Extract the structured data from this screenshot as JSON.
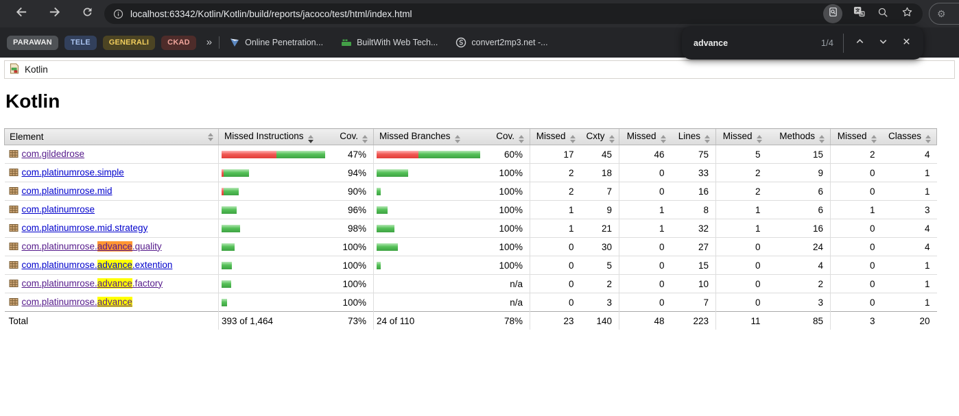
{
  "browser": {
    "toolbar": {
      "url": "localhost:63342/Kotlin/Kotlin/build/reports/jacoco/test/html/index.html",
      "nav_icons": [
        "back-icon",
        "forward-icon",
        "reload-icon",
        "info-icon"
      ],
      "page_action_icons": [
        "find-in-page-icon",
        "translate-icon",
        "zoom-icon",
        "bookmark-star-icon"
      ],
      "profile_icon": "gear-icon"
    },
    "bookmarks_bar": {
      "tab_groups": [
        {
          "label": "PARAWAN",
          "bg": "#4f5256",
          "fg": "#ececec"
        },
        {
          "label": "TELE",
          "bg": "#32405c",
          "fg": "#a9c3ef"
        },
        {
          "label": "GENERALI",
          "bg": "#4c4423",
          "fg": "#f2ce5d"
        },
        {
          "label": "CKAD",
          "bg": "#4e2c2a",
          "fg": "#efa49b"
        }
      ],
      "overflow_chevron": "»",
      "bookmarks": [
        {
          "label": "Online Penetration...",
          "icon": "pennant-shield-icon"
        },
        {
          "label": "BuiltWith Web Tech...",
          "icon": "builtwith-blocks-icon"
        },
        {
          "label": "convert2mp3.net -...",
          "icon": "s-circle-icon"
        }
      ]
    },
    "find_bar": {
      "query": "advance",
      "match_position": "1/4",
      "icons": [
        "chevron-up-icon",
        "chevron-down-icon",
        "close-icon"
      ]
    }
  },
  "report": {
    "breadcrumb": "Kotlin",
    "title": "Kotlin",
    "colors": {
      "link": "#0000cc",
      "visited_link": "#551a8b",
      "match_highlight": "#ffff00",
      "active_match_highlight": "#ff9632",
      "bar_green": "#4caf50",
      "bar_red": "#ef5350"
    },
    "table": {
      "headers": [
        {
          "label": "Element",
          "align": "left",
          "arrows_far": true
        },
        {
          "label": "Missed Instructions",
          "align": "left",
          "sep": true,
          "sorted": "desc"
        },
        {
          "label": "Cov.",
          "align": "right"
        },
        {
          "label": "Missed Branches",
          "align": "left",
          "sep": true
        },
        {
          "label": "Cov.",
          "align": "right"
        },
        {
          "label": "Missed",
          "align": "right",
          "sep": true
        },
        {
          "label": "Cxty",
          "align": "right"
        },
        {
          "label": "Missed",
          "align": "right",
          "sep": true
        },
        {
          "label": "Lines",
          "align": "right"
        },
        {
          "label": "Missed",
          "align": "right",
          "sep": true
        },
        {
          "label": "Methods",
          "align": "right"
        },
        {
          "label": "Missed",
          "align": "right",
          "sep": true
        },
        {
          "label": "Classes",
          "align": "right"
        }
      ],
      "rows": [
        {
          "package": {
            "prefix": "com.gildedrose",
            "match": "",
            "suffix": "",
            "visited": true,
            "match_style": ""
          },
          "cells": {
            "instr_bar": {
              "red": 80,
              "green": 71
            },
            "instr_cov": "47%",
            "branch_bar": {
              "red": 61,
              "green": 90
            },
            "branch_cov": "60%",
            "missed_cxty": "17",
            "cxty": "45",
            "missed_lines": "46",
            "lines": "75",
            "missed_methods": "5",
            "methods": "15",
            "missed_classes": "2",
            "classes": "4"
          }
        },
        {
          "package": {
            "prefix": "com.platinumrose.simple",
            "match": "",
            "suffix": "",
            "visited": false,
            "match_style": ""
          },
          "cells": {
            "instr_bar": {
              "red": 3,
              "green": 37
            },
            "instr_cov": "94%",
            "branch_bar": {
              "red": 0,
              "green": 46
            },
            "branch_cov": "100%",
            "missed_cxty": "2",
            "cxty": "18",
            "missed_lines": "0",
            "lines": "33",
            "missed_methods": "2",
            "methods": "9",
            "missed_classes": "0",
            "classes": "1"
          }
        },
        {
          "package": {
            "prefix": "com.platinumrose.mid",
            "match": "",
            "suffix": "",
            "visited": false,
            "match_style": ""
          },
          "cells": {
            "instr_bar": {
              "red": 3,
              "green": 22
            },
            "instr_cov": "90%",
            "branch_bar": {
              "red": 0,
              "green": 6
            },
            "branch_cov": "100%",
            "missed_cxty": "2",
            "cxty": "7",
            "missed_lines": "0",
            "lines": "16",
            "missed_methods": "2",
            "methods": "6",
            "missed_classes": "0",
            "classes": "1"
          }
        },
        {
          "package": {
            "prefix": "com.platinumrose",
            "match": "",
            "suffix": "",
            "visited": false,
            "match_style": ""
          },
          "cells": {
            "instr_bar": {
              "red": 0,
              "green": 22
            },
            "instr_cov": "96%",
            "branch_bar": {
              "red": 0,
              "green": 16
            },
            "branch_cov": "100%",
            "missed_cxty": "1",
            "cxty": "9",
            "missed_lines": "1",
            "lines": "8",
            "missed_methods": "1",
            "methods": "6",
            "missed_classes": "1",
            "classes": "3"
          }
        },
        {
          "package": {
            "prefix": "com.platinumrose.mid.strategy",
            "match": "",
            "suffix": "",
            "visited": false,
            "match_style": ""
          },
          "cells": {
            "instr_bar": {
              "red": 0,
              "green": 27
            },
            "instr_cov": "98%",
            "branch_bar": {
              "red": 0,
              "green": 26
            },
            "branch_cov": "100%",
            "missed_cxty": "1",
            "cxty": "21",
            "missed_lines": "1",
            "lines": "32",
            "missed_methods": "1",
            "methods": "16",
            "missed_classes": "0",
            "classes": "4"
          }
        },
        {
          "package": {
            "prefix": "com.platinumrose.",
            "match": "advance",
            "suffix": ".quality",
            "visited": true,
            "match_style": "active"
          },
          "cells": {
            "instr_bar": {
              "red": 0,
              "green": 19
            },
            "instr_cov": "100%",
            "branch_bar": {
              "red": 0,
              "green": 31
            },
            "branch_cov": "100%",
            "missed_cxty": "0",
            "cxty": "30",
            "missed_lines": "0",
            "lines": "27",
            "missed_methods": "0",
            "methods": "24",
            "missed_classes": "0",
            "classes": "4"
          }
        },
        {
          "package": {
            "prefix": "com.platinumrose.",
            "match": "advance",
            "suffix": ".extention",
            "visited": false,
            "match_style": "normal"
          },
          "cells": {
            "instr_bar": {
              "red": 0,
              "green": 15
            },
            "instr_cov": "100%",
            "branch_bar": {
              "red": 0,
              "green": 6
            },
            "branch_cov": "100%",
            "missed_cxty": "0",
            "cxty": "5",
            "missed_lines": "0",
            "lines": "15",
            "missed_methods": "0",
            "methods": "4",
            "missed_classes": "0",
            "classes": "1"
          }
        },
        {
          "package": {
            "prefix": "com.platinumrose.",
            "match": "advance",
            "suffix": ".factory",
            "visited": true,
            "match_style": "normal"
          },
          "cells": {
            "instr_bar": {
              "red": 0,
              "green": 14
            },
            "instr_cov": "100%",
            "branch_bar": {
              "red": 0,
              "green": 0
            },
            "branch_cov": "n/a",
            "missed_cxty": "0",
            "cxty": "2",
            "missed_lines": "0",
            "lines": "10",
            "missed_methods": "0",
            "methods": "2",
            "missed_classes": "0",
            "classes": "1"
          }
        },
        {
          "package": {
            "prefix": "com.platinumrose.",
            "match": "advance",
            "suffix": "",
            "visited": true,
            "match_style": "normal"
          },
          "cells": {
            "instr_bar": {
              "red": 0,
              "green": 8
            },
            "instr_cov": "100%",
            "branch_bar": {
              "red": 0,
              "green": 0
            },
            "branch_cov": "n/a",
            "missed_cxty": "0",
            "cxty": "3",
            "missed_lines": "0",
            "lines": "7",
            "missed_methods": "0",
            "methods": "3",
            "missed_classes": "0",
            "classes": "1"
          }
        }
      ],
      "total": {
        "label": "Total",
        "instr": "393 of 1,464",
        "instr_cov": "73%",
        "branches": "24 of 110",
        "branch_cov": "78%",
        "missed_cxty": "23",
        "cxty": "140",
        "missed_lines": "48",
        "lines": "223",
        "missed_methods": "11",
        "methods": "85",
        "missed_classes": "3",
        "classes": "20"
      }
    }
  }
}
